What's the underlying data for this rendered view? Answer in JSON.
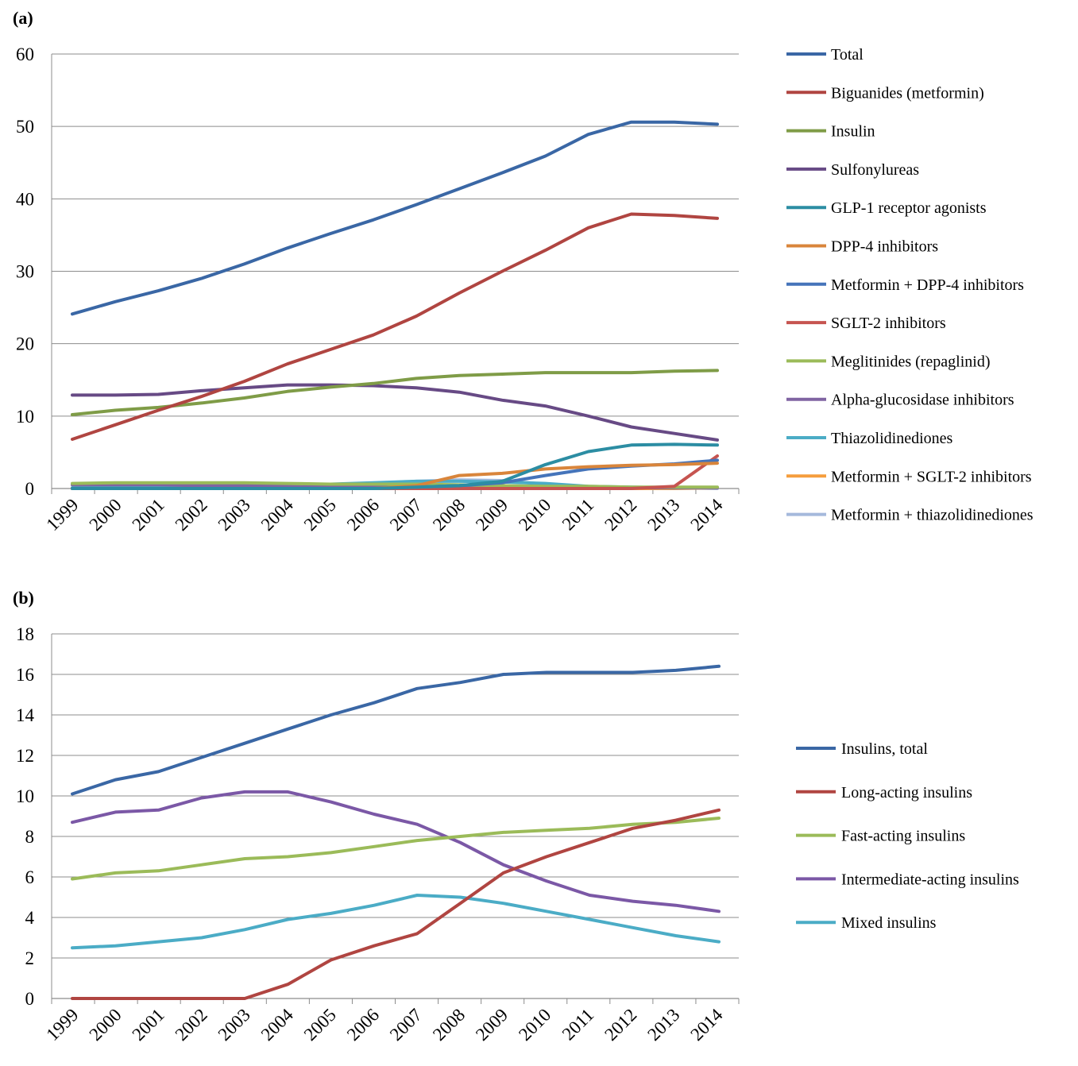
{
  "chart_data": [
    {
      "type": "line",
      "panel_label": "(a)",
      "x": [
        "1999",
        "2000",
        "2001",
        "2002",
        "2003",
        "2004",
        "2005",
        "2006",
        "2007",
        "2008",
        "2009",
        "2010",
        "2011",
        "2012",
        "2013",
        "2014"
      ],
      "ylim": [
        0,
        60
      ],
      "yticks": [
        "0",
        "10",
        "20",
        "30",
        "40",
        "50",
        "60"
      ],
      "grid": true,
      "legend_position": "right",
      "series": [
        {
          "name": "Total",
          "color": "#3A67A5",
          "values": [
            24.1,
            25.8,
            27.3,
            29.0,
            31.0,
            33.2,
            35.2,
            37.1,
            39.2,
            41.4,
            43.6,
            45.9,
            48.9,
            50.6,
            50.6,
            50.3
          ]
        },
        {
          "name": "Biguanides (metformin)",
          "color": "#B04541",
          "values": [
            6.8,
            8.8,
            10.8,
            12.7,
            14.8,
            17.2,
            19.2,
            21.2,
            23.8,
            27.0,
            30.0,
            32.9,
            36.0,
            37.9,
            37.7,
            37.3
          ]
        },
        {
          "name": "Insulin",
          "color": "#7F9C47",
          "values": [
            10.2,
            10.8,
            11.2,
            11.8,
            12.5,
            13.4,
            14.0,
            14.5,
            15.2,
            15.6,
            15.8,
            16.0,
            16.0,
            16.0,
            16.2,
            16.3
          ]
        },
        {
          "name": "Sulfonylureas",
          "color": "#674A85",
          "values": [
            12.9,
            12.9,
            13.0,
            13.5,
            13.9,
            14.3,
            14.3,
            14.2,
            13.9,
            13.3,
            12.2,
            11.4,
            10.0,
            8.5,
            7.6,
            6.7
          ]
        },
        {
          "name": "GLP-1 receptor agonists",
          "color": "#2C8DA3",
          "values": [
            0,
            0,
            0,
            0,
            0,
            0,
            0,
            0,
            0.2,
            0.4,
            1.0,
            3.3,
            5.1,
            6.0,
            6.1,
            6.0
          ]
        },
        {
          "name": "DPP-4 inhibitors",
          "color": "#D9853B",
          "values": [
            0,
            0,
            0,
            0,
            0,
            0,
            0,
            0,
            0.4,
            1.8,
            2.1,
            2.7,
            3.0,
            3.2,
            3.3,
            3.5
          ]
        },
        {
          "name": "Metformin + DPP-4 inhibitors",
          "color": "#4574BA",
          "values": [
            0,
            0,
            0,
            0,
            0,
            0,
            0,
            0,
            0.2,
            0.4,
            0.8,
            1.8,
            2.7,
            3.1,
            3.4,
            3.9
          ]
        },
        {
          "name": "SGLT-2 inhibitors",
          "color": "#C65450",
          "values": [
            0,
            0,
            0,
            0,
            0,
            0,
            0,
            0,
            0,
            0,
            0,
            0,
            0,
            0,
            0.3,
            4.5
          ]
        },
        {
          "name": "Meglitinides (repaglinid)",
          "color": "#9BBB59",
          "values": [
            0.7,
            0.8,
            0.8,
            0.8,
            0.8,
            0.7,
            0.6,
            0.6,
            0.6,
            0.5,
            0.4,
            0.3,
            0.3,
            0.2,
            0.2,
            0.2
          ]
        },
        {
          "name": "Alpha-glucosidase inhibitors",
          "color": "#8064A2",
          "values": [
            0.5,
            0.5,
            0.5,
            0.4,
            0.4,
            0.4,
            0.3,
            0.3,
            0.3,
            0.2,
            0.2,
            0.2,
            0.1,
            0.1,
            0.1,
            0.1
          ]
        },
        {
          "name": "Thiazolidinediones",
          "color": "#4BACC6",
          "values": [
            0.1,
            0.2,
            0.2,
            0.3,
            0.4,
            0.5,
            0.6,
            0.8,
            1.0,
            1.0,
            0.9,
            0.7,
            0.3,
            0.2,
            0.1,
            0.1
          ]
        },
        {
          "name": "Metformin + SGLT-2 inhibitors",
          "color": "#F59D3D",
          "values": [
            0,
            0,
            0,
            0,
            0,
            0,
            0,
            0,
            0,
            0,
            0,
            0,
            0,
            0,
            0,
            0.1
          ]
        },
        {
          "name": "Metformin + thiazolidinediones",
          "color": "#A5B9DC",
          "values": [
            0,
            0,
            0,
            0,
            0,
            0,
            0.2,
            0.6,
            1.0,
            1.2,
            1.1,
            0.6,
            0.2,
            0.1,
            0.1,
            0
          ]
        }
      ]
    },
    {
      "type": "line",
      "panel_label": "(b)",
      "x": [
        "1999",
        "2000",
        "2001",
        "2002",
        "2003",
        "2004",
        "2005",
        "2006",
        "2007",
        "2008",
        "2009",
        "2010",
        "2011",
        "2012",
        "2013",
        "2014"
      ],
      "ylim": [
        0,
        18
      ],
      "yticks": [
        "0",
        "2",
        "4",
        "6",
        "8",
        "10",
        "12",
        "14",
        "16",
        "18"
      ],
      "grid": true,
      "legend_position": "right",
      "series": [
        {
          "name": "Insulins, total",
          "color": "#3A67A5",
          "values": [
            10.1,
            10.8,
            11.2,
            11.9,
            12.6,
            13.3,
            14.0,
            14.6,
            15.3,
            15.6,
            16.0,
            16.1,
            16.1,
            16.1,
            16.2,
            16.4
          ]
        },
        {
          "name": "Long-acting insulins",
          "color": "#B04541",
          "values": [
            0,
            0,
            0,
            0,
            0,
            0.7,
            1.9,
            2.6,
            3.2,
            4.7,
            6.2,
            7.0,
            7.7,
            8.4,
            8.8,
            9.3
          ]
        },
        {
          "name": "Fast-acting insulins",
          "color": "#9BBB59",
          "values": [
            5.9,
            6.2,
            6.3,
            6.6,
            6.9,
            7.0,
            7.2,
            7.5,
            7.8,
            8.0,
            8.2,
            8.3,
            8.4,
            8.6,
            8.7,
            8.9
          ]
        },
        {
          "name": "Intermediate-acting insulins",
          "color": "#7B58A6",
          "values": [
            8.7,
            9.2,
            9.3,
            9.9,
            10.2,
            10.2,
            9.7,
            9.1,
            8.6,
            7.7,
            6.6,
            5.8,
            5.1,
            4.8,
            4.6,
            4.3
          ]
        },
        {
          "name": "Mixed insulins",
          "color": "#4BACC6",
          "values": [
            2.5,
            2.6,
            2.8,
            3.0,
            3.4,
            3.9,
            4.2,
            4.6,
            5.1,
            5.0,
            4.7,
            4.3,
            3.9,
            3.5,
            3.1,
            2.8
          ]
        }
      ]
    }
  ]
}
